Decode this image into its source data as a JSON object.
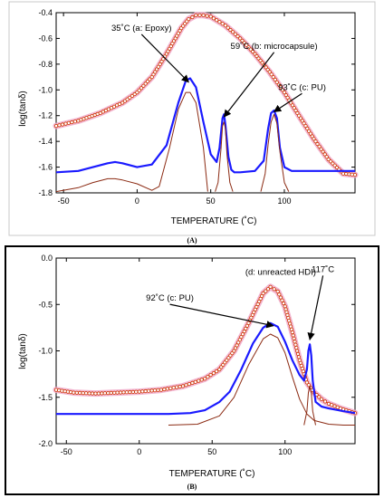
{
  "figure": {
    "panels": [
      {
        "label": "(A)",
        "xlabel": "TEMPERATURE (˚C)",
        "ylabel": "log(tanδ)"
      },
      {
        "label": "(B)",
        "xlabel": "TEMPERATURE (˚C)",
        "ylabel": "log(tanδ)"
      }
    ]
  },
  "chart_data": [
    {
      "type": "line",
      "panel_label": "(A)",
      "xlabel": "TEMPERATURE (˚C)",
      "ylabel": "log(tanδ)",
      "xlim": [
        -55,
        148
      ],
      "ylim": [
        -1.8,
        -0.4
      ],
      "x_ticks": [
        -50,
        0,
        50,
        100
      ],
      "y_ticks": [
        -1.8,
        -1.6,
        -1.4,
        -1.2,
        -1.0,
        -0.8,
        -0.6,
        -0.4
      ],
      "y_tick_labels": [
        "-1.8",
        "-1.6",
        "-1.4",
        "-1.2",
        "-1.0",
        "-0.8",
        "-0.6",
        "-0.4"
      ],
      "grid": false,
      "series": [
        {
          "style": "circles",
          "color": "#cc3300",
          "halo": "#f0a8c8",
          "x": [
            -55,
            -40,
            -25,
            -10,
            0,
            10,
            20,
            30,
            35,
            40,
            45,
            50,
            60,
            70,
            80,
            90,
            100,
            110,
            120,
            130,
            140,
            148
          ],
          "y": [
            -1.28,
            -1.24,
            -1.18,
            -1.1,
            -1.02,
            -0.9,
            -0.72,
            -0.52,
            -0.45,
            -0.42,
            -0.42,
            -0.43,
            -0.5,
            -0.6,
            -0.72,
            -0.86,
            -1.02,
            -1.2,
            -1.38,
            -1.54,
            -1.65,
            -1.66
          ]
        },
        {
          "style": "line",
          "color": "#1a1aff",
          "width": 2.2,
          "x": [
            -55,
            -40,
            -30,
            -20,
            -15,
            -10,
            0,
            10,
            20,
            28,
            33,
            36,
            40,
            45,
            50,
            54,
            56,
            58,
            59,
            60,
            62,
            64,
            66,
            70,
            80,
            86,
            89,
            91,
            93,
            95,
            97,
            100,
            105,
            110,
            120,
            130,
            148
          ],
          "y": [
            -1.64,
            -1.63,
            -1.6,
            -1.57,
            -1.56,
            -1.57,
            -1.6,
            -1.58,
            -1.43,
            -1.1,
            -0.93,
            -0.91,
            -0.98,
            -1.25,
            -1.5,
            -1.56,
            -1.45,
            -1.22,
            -1.19,
            -1.27,
            -1.52,
            -1.62,
            -1.64,
            -1.64,
            -1.63,
            -1.55,
            -1.3,
            -1.18,
            -1.16,
            -1.22,
            -1.45,
            -1.6,
            -1.63,
            -1.63,
            -1.63,
            -1.63,
            -1.63
          ]
        },
        {
          "style": "line",
          "color": "#8b2a12",
          "width": 1,
          "x": [
            -55,
            -40,
            -30,
            -20,
            -15,
            -10,
            0,
            10,
            15,
            22,
            28,
            33,
            36,
            40,
            45,
            48
          ],
          "y": [
            -1.79,
            -1.76,
            -1.72,
            -1.69,
            -1.69,
            -1.7,
            -1.73,
            -1.78,
            -1.75,
            -1.45,
            -1.15,
            -1.02,
            -1.02,
            -1.1,
            -1.45,
            -1.79
          ]
        },
        {
          "style": "line",
          "color": "#8b2a12",
          "width": 1,
          "x": [
            53,
            55,
            57,
            58,
            59,
            60,
            61,
            63,
            65
          ],
          "y": [
            -1.79,
            -1.72,
            -1.45,
            -1.28,
            -1.25,
            -1.3,
            -1.5,
            -1.72,
            -1.79
          ]
        },
        {
          "style": "line",
          "color": "#8b2a12",
          "width": 1,
          "x": [
            84,
            87,
            89,
            91,
            93,
            95,
            97,
            100,
            103
          ],
          "y": [
            -1.79,
            -1.65,
            -1.42,
            -1.25,
            -1.19,
            -1.26,
            -1.48,
            -1.72,
            -1.79
          ]
        }
      ],
      "annotations": [
        {
          "text": "35˚C (a: Epoxy)",
          "x": 3,
          "y": -0.54,
          "arrow_to": [
            35,
            -0.94
          ]
        },
        {
          "text": "59˚C (b: microcapsule)",
          "x": 93,
          "y": -0.68,
          "arrow_to": [
            59,
            -1.21
          ]
        },
        {
          "text": "93˚C (c: PU)",
          "x": 112,
          "y": -1.0,
          "arrow_to": [
            93,
            -1.17
          ]
        }
      ]
    },
    {
      "type": "line",
      "panel_label": "(B)",
      "xlabel": "TEMPERATURE (˚C)",
      "ylabel": "log(tanδ)",
      "xlim": [
        -57,
        148
      ],
      "ylim": [
        -2.0,
        0.0
      ],
      "x_ticks": [
        -50,
        0,
        50,
        100
      ],
      "y_ticks": [
        -2.0,
        -1.5,
        -1.0,
        -0.5,
        0.0
      ],
      "y_tick_labels": [
        "-2.0",
        "-1.5",
        "-1.0",
        "-0.5",
        "0.0"
      ],
      "grid": false,
      "series": [
        {
          "style": "circles",
          "color": "#cc3300",
          "halo": "#f0a8c8",
          "x": [
            -57,
            -45,
            -30,
            -15,
            0,
            15,
            30,
            45,
            55,
            65,
            75,
            85,
            90,
            95,
            100,
            105,
            110,
            115,
            120,
            125,
            130,
            138,
            148
          ],
          "y": [
            -1.42,
            -1.45,
            -1.46,
            -1.45,
            -1.44,
            -1.42,
            -1.38,
            -1.3,
            -1.2,
            -1.0,
            -0.7,
            -0.38,
            -0.31,
            -0.36,
            -0.52,
            -0.8,
            -1.1,
            -1.34,
            -1.45,
            -1.52,
            -1.57,
            -1.62,
            -1.67
          ]
        },
        {
          "style": "line",
          "color": "#1a1aff",
          "width": 2.2,
          "x": [
            -57,
            -40,
            -20,
            0,
            20,
            35,
            45,
            55,
            62,
            70,
            78,
            85,
            90,
            95,
            100,
            105,
            110,
            113,
            115,
            116,
            117,
            118,
            119,
            121,
            125,
            130,
            140,
            148
          ],
          "y": [
            -1.68,
            -1.68,
            -1.68,
            -1.68,
            -1.68,
            -1.67,
            -1.64,
            -1.55,
            -1.44,
            -1.2,
            -0.92,
            -0.75,
            -0.7,
            -0.74,
            -0.9,
            -1.1,
            -1.26,
            -1.32,
            -1.2,
            -1.0,
            -0.93,
            -1.05,
            -1.32,
            -1.55,
            -1.6,
            -1.62,
            -1.65,
            -1.67
          ]
        },
        {
          "style": "line",
          "color": "#8b2a12",
          "width": 1,
          "x": [
            20,
            40,
            55,
            65,
            75,
            85,
            90,
            95,
            100,
            105,
            110,
            115,
            120,
            130,
            140,
            148
          ],
          "y": [
            -1.8,
            -1.79,
            -1.7,
            -1.5,
            -1.15,
            -0.87,
            -0.82,
            -0.86,
            -1.02,
            -1.28,
            -1.52,
            -1.68,
            -1.75,
            -1.79,
            -1.8,
            -1.8
          ]
        },
        {
          "style": "line",
          "color": "#8b2a12",
          "width": 1,
          "x": [
            113,
            115,
            116,
            117,
            118,
            119,
            121
          ],
          "y": [
            -1.8,
            -1.65,
            -1.45,
            -1.38,
            -1.45,
            -1.65,
            -1.8
          ]
        }
      ],
      "annotations": [
        {
          "text": "(d: unreacted HDI)",
          "x": 97,
          "y": -0.18,
          "arrow_to": null
        },
        {
          "text": "117˚C",
          "x": 126,
          "y": -0.15,
          "arrow_to": [
            117,
            -0.88
          ]
        },
        {
          "text": "92˚C (c: PU)",
          "x": 21,
          "y": -0.46,
          "arrow_to": [
            92,
            -0.73
          ]
        }
      ]
    }
  ]
}
